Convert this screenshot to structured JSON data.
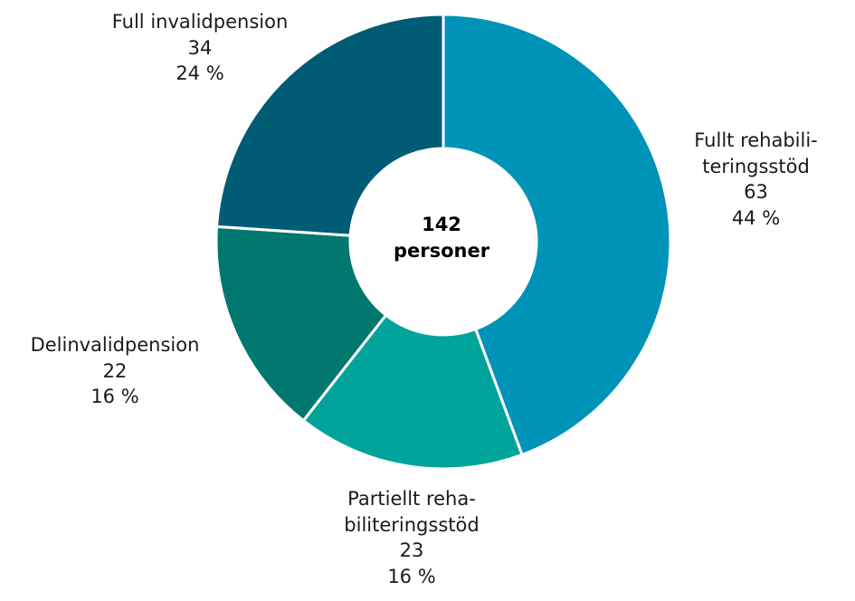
{
  "chart_data": {
    "type": "pie",
    "donut": true,
    "center_text": [
      "142",
      "personer"
    ],
    "total": 142,
    "slices": [
      {
        "label": [
          "Fullt rehabili-",
          "teringsstöd"
        ],
        "value": 63,
        "percent": "44 %",
        "color": "#0093B8"
      },
      {
        "label": [
          "Partiellt reha-",
          "biliteringsstöd"
        ],
        "value": 23,
        "percent": "16 %",
        "color": "#00A49A"
      },
      {
        "label": [
          "Delinvalidpension"
        ],
        "value": 22,
        "percent": "16 %",
        "color": "#00786F"
      },
      {
        "label": [
          "Full invalidpension"
        ],
        "value": 34,
        "percent": "24 %",
        "color": "#005B74"
      }
    ]
  }
}
